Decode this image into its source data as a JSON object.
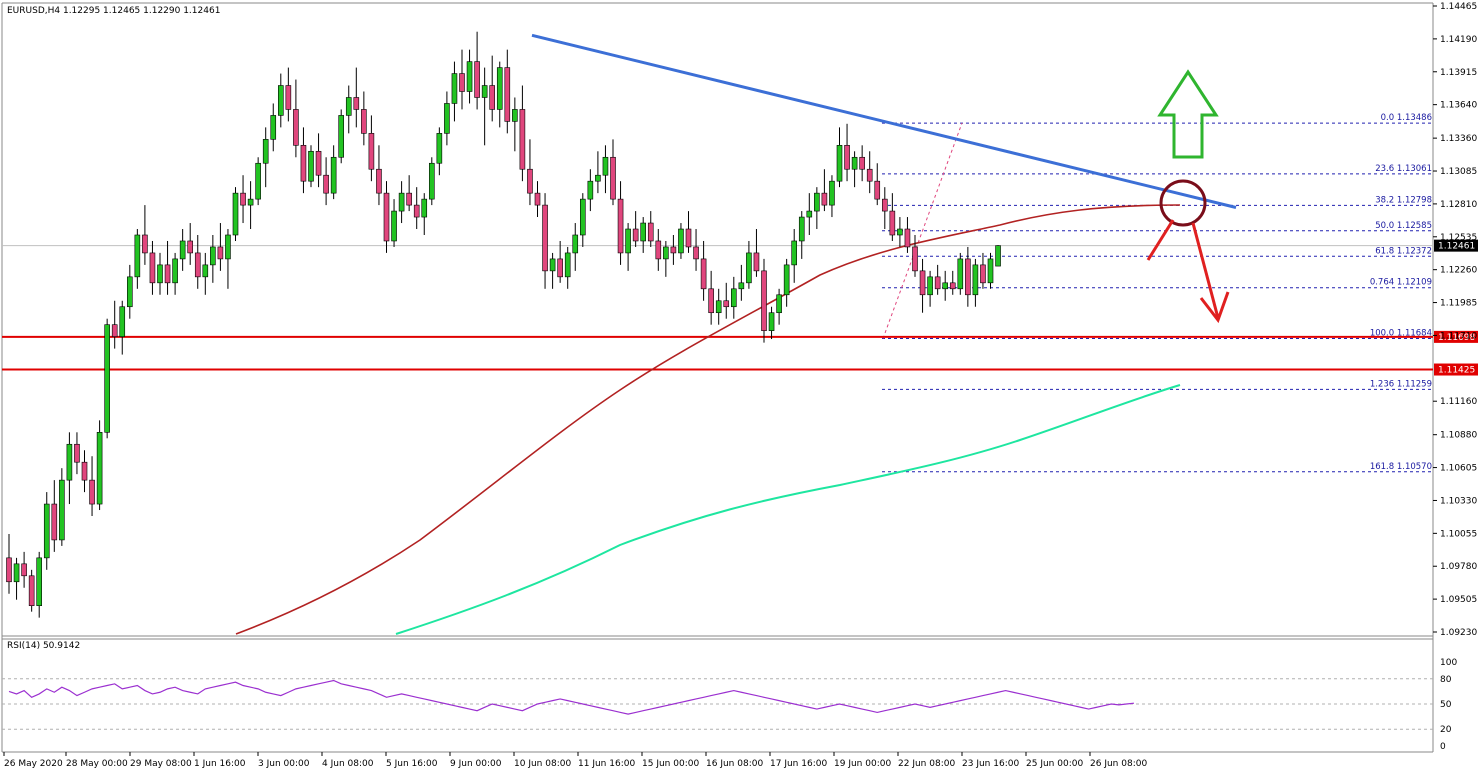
{
  "header": {
    "symbol_line": "EURUSD,H4  1.12295 1.12465 1.12290 1.12461",
    "rsi_line": "RSI(14) 50.9142"
  },
  "colors": {
    "bull": "#22c322",
    "bear": "#e0467d",
    "trendline": "#3c6fd6",
    "ma_slow": "#b22222",
    "ma_long": "#1ee6a0",
    "support": "#e00000",
    "fib": "#2020b0",
    "rsi": "#9b30d0",
    "arrow_up": "#2fb52f",
    "arrow_down": "#e02020",
    "circle": "#7a0d1a"
  },
  "chart_data": {
    "type": "candlestick",
    "symbol": "EURUSD",
    "timeframe": "H4",
    "ylim": [
      1.0923,
      1.14465
    ],
    "y_ticks": [
      "1.14465",
      "1.14190",
      "1.13915",
      "1.13640",
      "1.13360",
      "1.13085",
      "1.12810",
      "1.12535",
      "1.12260",
      "1.11985",
      "1.11710",
      "1.11160",
      "1.10880",
      "1.10605",
      "1.10330",
      "1.10055",
      "1.09780",
      "1.09505",
      "1.09230"
    ],
    "x_ticks": [
      "26 May 2020",
      "28 May 00:00",
      "29 May 08:00",
      "1 Jun 16:00",
      "3 Jun 00:00",
      "4 Jun 08:00",
      "5 Jun 16:00",
      "9 Jun 00:00",
      "10 Jun 08:00",
      "11 Jun 16:00",
      "15 Jun 00:00",
      "16 Jun 08:00",
      "17 Jun 16:00",
      "19 Jun 00:00",
      "22 Jun 08:00",
      "23 Jun 16:00",
      "25 Jun 00:00",
      "26 Jun 08:00"
    ],
    "current_price": {
      "label": "1.12461",
      "value": 1.12461
    },
    "support_levels": [
      {
        "label": "1.11698",
        "value": 1.11698
      },
      {
        "label": "1.11425",
        "value": 1.11425
      }
    ],
    "fib_levels": [
      {
        "label": "0.0 1.13486",
        "value": 1.13486
      },
      {
        "label": "23.6 1.13061",
        "value": 1.13061
      },
      {
        "label": "38.2 1.12798",
        "value": 1.12798
      },
      {
        "label": "50.0 1.12585",
        "value": 1.12585
      },
      {
        "label": "61.8 1.12372",
        "value": 1.12372
      },
      {
        "label": "0.764 1.12109",
        "value": 1.12109
      },
      {
        "label": "100.0 1.11684",
        "value": 1.11684
      },
      {
        "label": "1.236 1.11259",
        "value": 1.11259
      },
      {
        "label": "161.8 1.10570",
        "value": 1.1057
      }
    ],
    "trendline": {
      "from": [
        0,
        1.1422
      ],
      "to": [
        151,
        1.1278
      ]
    },
    "rsi": {
      "ylim": [
        0,
        100
      ],
      "ticks": [
        "100",
        "80",
        "50",
        "20",
        "0"
      ],
      "guides": [
        80,
        50,
        20
      ],
      "values": [
        65,
        62,
        66,
        58,
        62,
        68,
        64,
        70,
        66,
        60,
        64,
        68,
        70,
        72,
        74,
        68,
        70,
        72,
        66,
        62,
        64,
        68,
        70,
        66,
        64,
        62,
        68,
        70,
        72,
        74,
        76,
        72,
        70,
        68,
        64,
        62,
        60,
        64,
        68,
        70,
        72,
        74,
        76,
        78,
        74,
        72,
        70,
        68,
        66,
        62,
        58,
        60,
        62,
        60,
        58,
        56,
        54,
        52,
        50,
        48,
        46,
        44,
        42,
        46,
        50,
        48,
        46,
        44,
        42,
        46,
        50,
        52,
        54,
        56,
        54,
        52,
        50,
        48,
        46,
        44,
        42,
        40,
        38,
        40,
        42,
        44,
        46,
        48,
        50,
        52,
        54,
        56,
        58,
        60,
        62,
        64,
        66,
        64,
        62,
        60,
        58,
        56,
        54,
        52,
        50,
        48,
        46,
        44,
        46,
        48,
        50,
        48,
        46,
        44,
        42,
        40,
        42,
        44,
        46,
        48,
        50,
        48,
        46,
        48,
        50,
        52,
        54,
        56,
        58,
        60,
        62,
        64,
        66,
        64,
        62,
        60,
        58,
        56,
        54,
        52,
        50,
        48,
        46,
        44,
        46,
        48,
        50,
        49,
        50,
        51
      ]
    },
    "candles": [
      [
        1.0985,
        1.1005,
        1.0955,
        1.0965
      ],
      [
        1.0965,
        1.0985,
        1.095,
        1.098
      ],
      [
        1.098,
        1.099,
        1.096,
        1.097
      ],
      [
        1.097,
        1.0975,
        1.094,
        1.0945
      ],
      [
        1.0945,
        1.099,
        1.0935,
        1.0985
      ],
      [
        1.0985,
        1.104,
        1.0975,
        1.103
      ],
      [
        1.103,
        1.105,
        1.099,
        1.1
      ],
      [
        1.1,
        1.106,
        1.0995,
        1.105
      ],
      [
        1.105,
        1.109,
        1.103,
        1.108
      ],
      [
        1.108,
        1.109,
        1.1055,
        1.1065
      ],
      [
        1.1065,
        1.1075,
        1.104,
        1.105
      ],
      [
        1.105,
        1.107,
        1.102,
        1.103
      ],
      [
        1.103,
        1.11,
        1.1025,
        1.109
      ],
      [
        1.109,
        1.1185,
        1.1085,
        1.118
      ],
      [
        1.118,
        1.12,
        1.116,
        1.117
      ],
      [
        1.117,
        1.12,
        1.1155,
        1.1195
      ],
      [
        1.1195,
        1.123,
        1.1185,
        1.122
      ],
      [
        1.122,
        1.126,
        1.121,
        1.1255
      ],
      [
        1.1255,
        1.128,
        1.123,
        1.124
      ],
      [
        1.124,
        1.125,
        1.1205,
        1.1215
      ],
      [
        1.1215,
        1.124,
        1.1205,
        1.123
      ],
      [
        1.123,
        1.125,
        1.1205,
        1.1215
      ],
      [
        1.1215,
        1.124,
        1.1205,
        1.1235
      ],
      [
        1.1235,
        1.126,
        1.1225,
        1.125
      ],
      [
        1.125,
        1.1265,
        1.123,
        1.124
      ],
      [
        1.124,
        1.1255,
        1.121,
        1.122
      ],
      [
        1.122,
        1.124,
        1.1205,
        1.123
      ],
      [
        1.123,
        1.1255,
        1.1215,
        1.1245
      ],
      [
        1.1245,
        1.1265,
        1.1225,
        1.1235
      ],
      [
        1.1235,
        1.126,
        1.121,
        1.1255
      ],
      [
        1.1255,
        1.1295,
        1.125,
        1.129
      ],
      [
        1.129,
        1.1305,
        1.1265,
        1.128
      ],
      [
        1.128,
        1.13,
        1.126,
        1.1285
      ],
      [
        1.1285,
        1.132,
        1.128,
        1.1315
      ],
      [
        1.1315,
        1.1345,
        1.1295,
        1.1335
      ],
      [
        1.1335,
        1.1365,
        1.1325,
        1.1355
      ],
      [
        1.1355,
        1.139,
        1.1345,
        1.138
      ],
      [
        1.138,
        1.1395,
        1.135,
        1.136
      ],
      [
        1.136,
        1.1385,
        1.132,
        1.133
      ],
      [
        1.133,
        1.1345,
        1.129,
        1.13
      ],
      [
        1.13,
        1.133,
        1.1295,
        1.1325
      ],
      [
        1.1325,
        1.134,
        1.1295,
        1.1305
      ],
      [
        1.1305,
        1.132,
        1.128,
        1.129
      ],
      [
        1.129,
        1.133,
        1.1285,
        1.132
      ],
      [
        1.132,
        1.136,
        1.1315,
        1.1355
      ],
      [
        1.1355,
        1.138,
        1.134,
        1.137
      ],
      [
        1.137,
        1.1395,
        1.1345,
        1.136
      ],
      [
        1.136,
        1.1375,
        1.133,
        1.134
      ],
      [
        1.134,
        1.1355,
        1.13,
        1.131
      ],
      [
        1.131,
        1.133,
        1.128,
        1.129
      ],
      [
        1.129,
        1.13,
        1.124,
        1.125
      ],
      [
        1.125,
        1.1285,
        1.1245,
        1.1275
      ],
      [
        1.1275,
        1.13,
        1.1265,
        1.129
      ],
      [
        1.129,
        1.1305,
        1.1275,
        1.128
      ],
      [
        1.128,
        1.1295,
        1.126,
        1.127
      ],
      [
        1.127,
        1.129,
        1.1255,
        1.1285
      ],
      [
        1.1285,
        1.132,
        1.128,
        1.1315
      ],
      [
        1.1315,
        1.1345,
        1.1305,
        1.134
      ],
      [
        1.134,
        1.1375,
        1.133,
        1.1365
      ],
      [
        1.1365,
        1.14,
        1.135,
        1.139
      ],
      [
        1.139,
        1.141,
        1.136,
        1.1375
      ],
      [
        1.1375,
        1.141,
        1.1365,
        1.14
      ],
      [
        1.14,
        1.1425,
        1.136,
        1.137
      ],
      [
        1.137,
        1.1395,
        1.133,
        1.138
      ],
      [
        1.138,
        1.1405,
        1.135,
        1.136
      ],
      [
        1.136,
        1.14,
        1.1345,
        1.1395
      ],
      [
        1.1395,
        1.141,
        1.134,
        1.135
      ],
      [
        1.135,
        1.137,
        1.1325,
        1.136
      ],
      [
        1.136,
        1.138,
        1.13,
        1.131
      ],
      [
        1.131,
        1.1335,
        1.128,
        1.129
      ],
      [
        1.129,
        1.13,
        1.127,
        1.128
      ],
      [
        1.128,
        1.129,
        1.121,
        1.1225
      ],
      [
        1.1225,
        1.124,
        1.121,
        1.1235
      ],
      [
        1.1235,
        1.125,
        1.1215,
        1.122
      ],
      [
        1.122,
        1.1245,
        1.121,
        1.124
      ],
      [
        1.124,
        1.1265,
        1.1225,
        1.1255
      ],
      [
        1.1255,
        1.129,
        1.1245,
        1.1285
      ],
      [
        1.1285,
        1.131,
        1.1275,
        1.13
      ],
      [
        1.13,
        1.1325,
        1.129,
        1.1305
      ],
      [
        1.1305,
        1.133,
        1.129,
        1.132
      ],
      [
        1.132,
        1.1335,
        1.128,
        1.1285
      ],
      [
        1.1285,
        1.13,
        1.123,
        1.124
      ],
      [
        1.124,
        1.1265,
        1.1225,
        1.126
      ],
      [
        1.126,
        1.1275,
        1.1245,
        1.125
      ],
      [
        1.125,
        1.127,
        1.124,
        1.1265
      ],
      [
        1.1265,
        1.1275,
        1.1245,
        1.125
      ],
      [
        1.125,
        1.126,
        1.1225,
        1.1235
      ],
      [
        1.1235,
        1.125,
        1.122,
        1.1245
      ],
      [
        1.1245,
        1.1255,
        1.123,
        1.124
      ],
      [
        1.124,
        1.1265,
        1.1235,
        1.126
      ],
      [
        1.126,
        1.1275,
        1.124,
        1.1245
      ],
      [
        1.1245,
        1.126,
        1.1225,
        1.1235
      ],
      [
        1.1235,
        1.125,
        1.12,
        1.121
      ],
      [
        1.121,
        1.1225,
        1.118,
        1.119
      ],
      [
        1.119,
        1.121,
        1.118,
        1.12
      ],
      [
        1.12,
        1.1215,
        1.1185,
        1.1195
      ],
      [
        1.1195,
        1.122,
        1.1185,
        1.121
      ],
      [
        1.121,
        1.123,
        1.12,
        1.1215
      ],
      [
        1.1215,
        1.125,
        1.121,
        1.124
      ],
      [
        1.124,
        1.126,
        1.122,
        1.1225
      ],
      [
        1.1225,
        1.1235,
        1.1165,
        1.1175
      ],
      [
        1.1175,
        1.1195,
        1.1168,
        1.119
      ],
      [
        1.119,
        1.121,
        1.118,
        1.1205
      ],
      [
        1.1205,
        1.1235,
        1.1195,
        1.123
      ],
      [
        1.123,
        1.126,
        1.1215,
        1.125
      ],
      [
        1.125,
        1.1275,
        1.1235,
        1.127
      ],
      [
        1.127,
        1.129,
        1.1255,
        1.1275
      ],
      [
        1.1275,
        1.1295,
        1.126,
        1.129
      ],
      [
        1.129,
        1.131,
        1.1275,
        1.128
      ],
      [
        1.128,
        1.1305,
        1.127,
        1.13
      ],
      [
        1.13,
        1.1345,
        1.1295,
        1.133
      ],
      [
        1.133,
        1.1348,
        1.13,
        1.131
      ],
      [
        1.131,
        1.1325,
        1.1295,
        1.132
      ],
      [
        1.132,
        1.133,
        1.13,
        1.131
      ],
      [
        1.131,
        1.1325,
        1.129,
        1.13
      ],
      [
        1.13,
        1.1315,
        1.128,
        1.1285
      ],
      [
        1.1285,
        1.1295,
        1.126,
        1.1275
      ],
      [
        1.1275,
        1.129,
        1.125,
        1.1255
      ],
      [
        1.1255,
        1.127,
        1.1245,
        1.126
      ],
      [
        1.126,
        1.127,
        1.124,
        1.1245
      ],
      [
        1.1245,
        1.1255,
        1.122,
        1.1225
      ],
      [
        1.1225,
        1.1235,
        1.119,
        1.1205
      ],
      [
        1.1205,
        1.1225,
        1.1195,
        1.122
      ],
      [
        1.122,
        1.123,
        1.1205,
        1.121
      ],
      [
        1.121,
        1.1225,
        1.12,
        1.1215
      ],
      [
        1.1215,
        1.1225,
        1.1205,
        1.121
      ],
      [
        1.121,
        1.124,
        1.1205,
        1.1235
      ],
      [
        1.1235,
        1.1245,
        1.1195,
        1.1205
      ],
      [
        1.1205,
        1.1235,
        1.1195,
        1.123
      ],
      [
        1.123,
        1.124,
        1.121,
        1.1215
      ],
      [
        1.1215,
        1.124,
        1.121,
        1.1235
      ],
      [
        1.1229,
        1.12465,
        1.1229,
        1.12461
      ]
    ]
  }
}
